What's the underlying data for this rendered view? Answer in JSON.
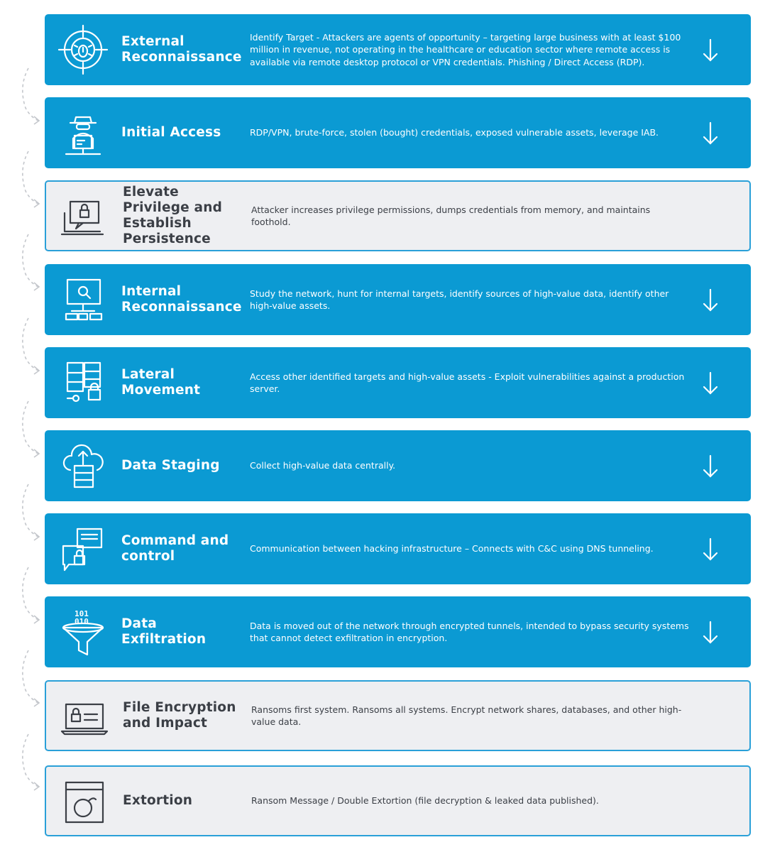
{
  "colors": {
    "primary": "#0b9ad3",
    "light_bg": "#eeeff2",
    "border": "#2aa0d8",
    "dark_text": "#3b3f46"
  },
  "steps": [
    {
      "title": "External Reconnaissance",
      "desc": "Identify Target - Attackers are agents of opportunity – targeting large business with at least $100 million in revenue, not operating in the healthcare or education sector where remote access is available via remote desktop protocol or VPN credentials. Phishing / Direct Access (RDP).",
      "icon": "bug-target-icon",
      "style": "dark",
      "arrow": true
    },
    {
      "title": "Initial Access",
      "desc": "RDP/VPN, brute-force, stolen (bought) credentials, exposed vulnerable assets, leverage IAB.",
      "icon": "hacker-icon",
      "style": "dark",
      "arrow": true
    },
    {
      "title": "Elevate Privilege and Establish Persistence",
      "desc": "Attacker increases privilege permissions, dumps credentials from memory, and maintains foothold.",
      "icon": "laptop-lock-icon",
      "style": "light",
      "arrow": false
    },
    {
      "title": "Internal Reconnaissance",
      "desc": "Study the network, hunt for internal targets, identify sources of high-value data, identify other high-value assets.",
      "icon": "network-search-icon",
      "style": "dark",
      "arrow": true
    },
    {
      "title": "Lateral Movement",
      "desc": "Access other identified targets and high-value assets - Exploit vulnerabilities against a production server.",
      "icon": "server-lock-icon",
      "style": "dark",
      "arrow": true
    },
    {
      "title": "Data Staging",
      "desc": "Collect high-value data centrally.",
      "icon": "cloud-upload-icon",
      "style": "dark",
      "arrow": true
    },
    {
      "title": "Command and control",
      "desc": "Communication between hacking infrastructure – Connects with C&C using DNS tunneling.",
      "icon": "chat-lock-icon",
      "style": "dark",
      "arrow": true
    },
    {
      "title": "Data Exfiltration",
      "desc": "Data is moved out of the network through encrypted tunnels, intended to bypass security systems that cannot detect exfiltration in encryption.",
      "icon": "funnel-binary-icon",
      "style": "dark",
      "arrow": true
    },
    {
      "title": "File Encryption and Impact",
      "desc": "Ransoms first system. Ransoms all systems. Encrypt network shares, databases, and other high-value data.",
      "icon": "laptop-encrypt-icon",
      "style": "light",
      "arrow": false
    },
    {
      "title": "Extortion",
      "desc": "Ransom Message / Double Extortion (file decryption & leaked data published).",
      "icon": "browser-bomb-icon",
      "style": "light",
      "arrow": false
    }
  ],
  "icon_text": {
    "binary_top": "101",
    "binary_bottom": "010"
  }
}
